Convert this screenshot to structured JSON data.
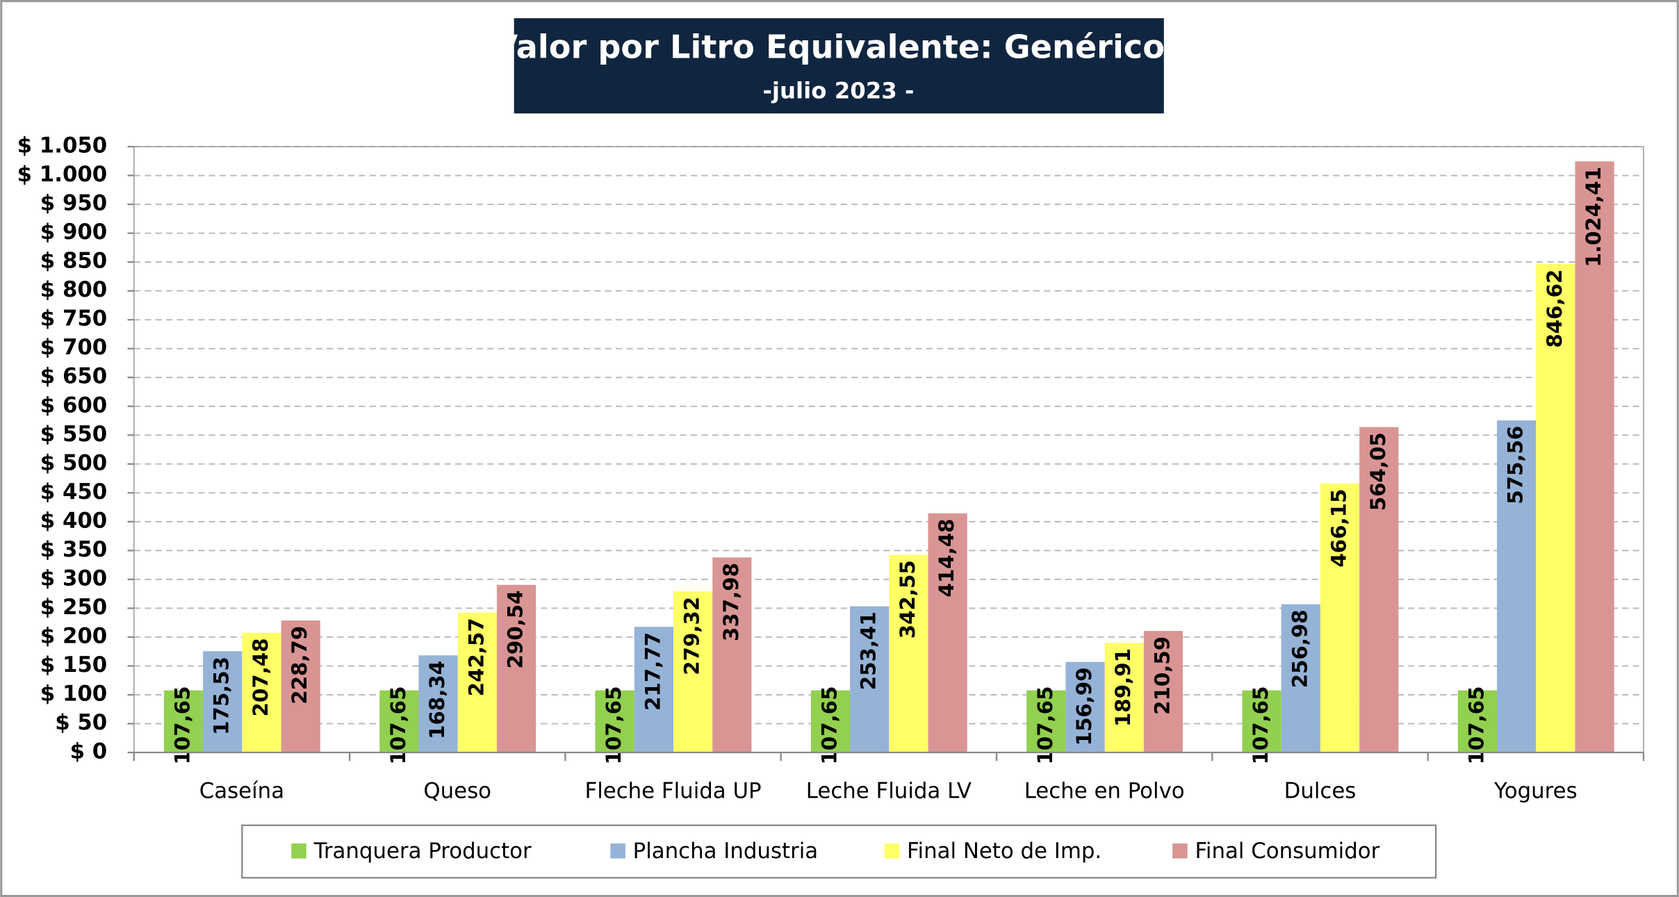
{
  "chart_data": {
    "type": "bar",
    "title": "Valor por Litro Equivalente: Genéricos",
    "subtitle": "-julio 2023 -",
    "categories": [
      "Caseína",
      "Queso",
      "Fleche Fluida UP",
      "Leche Fluida LV",
      "Leche en Polvo",
      "Dulces",
      "Yogures"
    ],
    "series": [
      {
        "name": "Tranquera Productor",
        "color": "#92d050",
        "values": [
          107.65,
          107.65,
          107.65,
          107.65,
          107.65,
          107.65,
          107.65
        ],
        "value_labels": [
          "107,65",
          "107,65",
          "107,65",
          "107,65",
          "107,65",
          "107,65",
          "107,65"
        ]
      },
      {
        "name": "Plancha Industria",
        "color": "#95b3d7",
        "values": [
          175.53,
          168.34,
          217.77,
          253.41,
          156.99,
          256.98,
          575.56
        ],
        "value_labels": [
          "175,53",
          "168,34",
          "217,77",
          "253,41",
          "156,99",
          "256,98",
          "575,56"
        ]
      },
      {
        "name": "Final Neto de Imp.",
        "color": "#ffff66",
        "values": [
          207.48,
          242.57,
          279.32,
          342.55,
          189.91,
          466.15,
          846.62
        ],
        "value_labels": [
          "207,48",
          "242,57",
          "279,32",
          "342,55",
          "189,91",
          "466,15",
          "846,62"
        ]
      },
      {
        "name": "Final Consumidor",
        "color": "#d99594",
        "values": [
          228.79,
          290.54,
          337.98,
          414.48,
          210.59,
          564.05,
          1024.41
        ],
        "value_labels": [
          "228,79",
          "290,54",
          "337,98",
          "414,48",
          "210,59",
          "564,05",
          "1.024,41"
        ]
      }
    ],
    "ylim": [
      0,
      1050
    ],
    "yticks": [
      {
        "value": 0,
        "label": "$ 0"
      },
      {
        "value": 50,
        "label": "$ 50"
      },
      {
        "value": 100,
        "label": "$ 100"
      },
      {
        "value": 150,
        "label": "$ 150"
      },
      {
        "value": 200,
        "label": "$ 200"
      },
      {
        "value": 250,
        "label": "$ 250"
      },
      {
        "value": 300,
        "label": "$ 300"
      },
      {
        "value": 350,
        "label": "$ 350"
      },
      {
        "value": 400,
        "label": "$ 400"
      },
      {
        "value": 450,
        "label": "$ 450"
      },
      {
        "value": 500,
        "label": "$ 500"
      },
      {
        "value": 550,
        "label": "$ 550"
      },
      {
        "value": 600,
        "label": "$ 600"
      },
      {
        "value": 650,
        "label": "$ 650"
      },
      {
        "value": 700,
        "label": "$ 700"
      },
      {
        "value": 750,
        "label": "$ 750"
      },
      {
        "value": 800,
        "label": "$ 800"
      },
      {
        "value": 850,
        "label": "$ 850"
      },
      {
        "value": 900,
        "label": "$ 900"
      },
      {
        "value": 950,
        "label": "$ 950"
      },
      {
        "value": 1000,
        "label": "$ 1.000"
      },
      {
        "value": 1050,
        "label": "$ 1.050"
      }
    ],
    "grid": true,
    "legend": "bottom"
  }
}
